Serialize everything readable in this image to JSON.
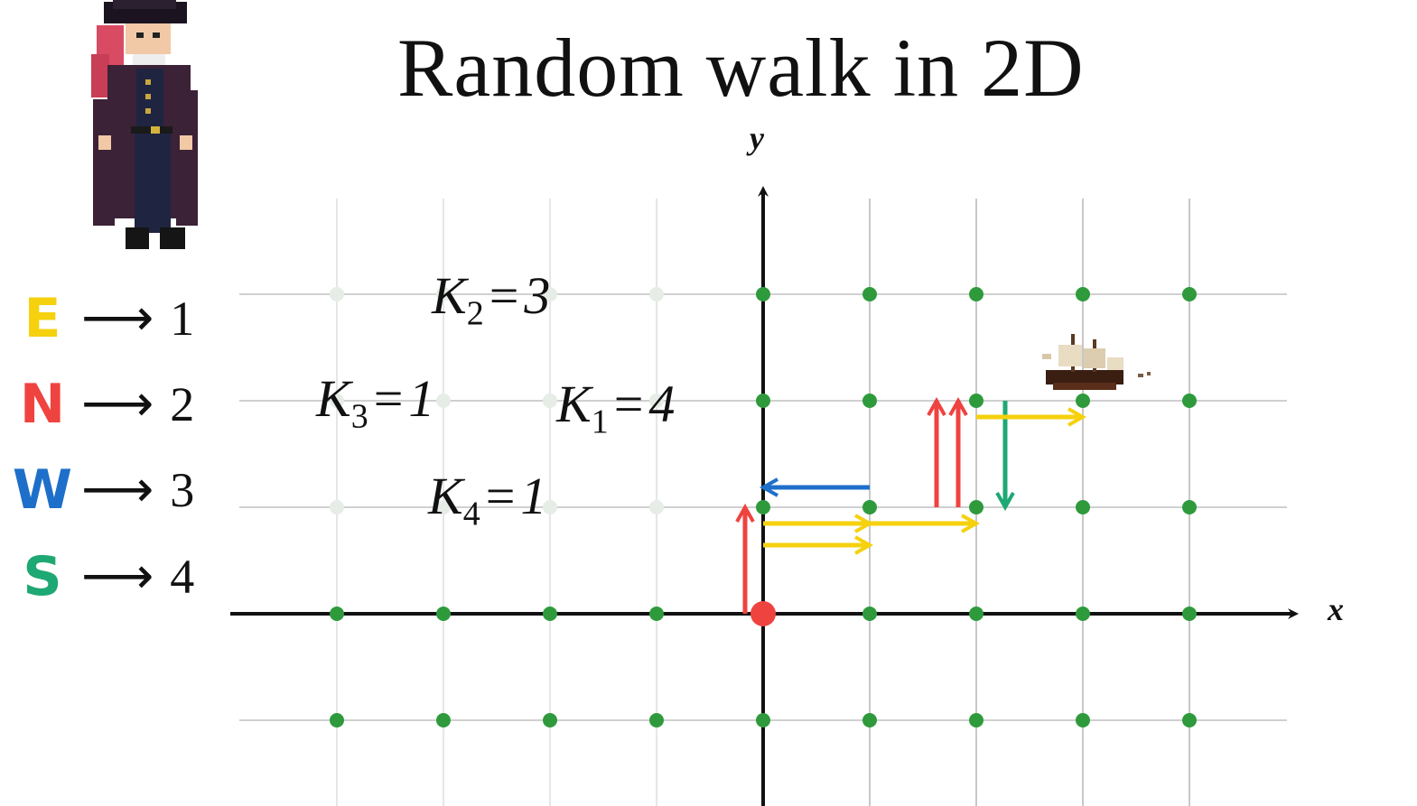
{
  "title": "Random walk in 2D",
  "axes": {
    "x_label": "x",
    "y_label": "y"
  },
  "legend": [
    {
      "letter": "E",
      "arrow": "⟶",
      "value": "1",
      "color": "#f5d10e"
    },
    {
      "letter": "N",
      "arrow": "⟶",
      "value": "2",
      "color": "#ef4340"
    },
    {
      "letter": "W",
      "arrow": "⟶",
      "value": "3",
      "color": "#1e6fc9"
    },
    {
      "letter": "S",
      "arrow": "⟶",
      "value": "4",
      "color": "#1ea873"
    }
  ],
  "counts": [
    {
      "symbol": "K",
      "index": "2",
      "op": "=",
      "value": "3"
    },
    {
      "symbol": "K",
      "index": "3",
      "op": "=",
      "value": "1"
    },
    {
      "symbol": "K",
      "index": "1",
      "op": "=",
      "value": "4"
    },
    {
      "symbol": "K",
      "index": "4",
      "op": "=",
      "value": "1"
    }
  ],
  "grid": {
    "x_range": [
      -4,
      4
    ],
    "y_range": [
      -1,
      3
    ]
  },
  "origin": [
    0,
    0
  ],
  "ship_position": [
    3,
    2
  ],
  "path_steps": [
    {
      "from": [
        0,
        0
      ],
      "to": [
        0,
        1
      ],
      "direction": "N"
    },
    {
      "from": [
        0,
        1
      ],
      "to": [
        1,
        1
      ],
      "direction": "E"
    },
    {
      "from": [
        1,
        1
      ],
      "to": [
        0,
        1
      ],
      "direction": "W"
    },
    {
      "from": [
        0,
        1
      ],
      "to": [
        1,
        1
      ],
      "direction": "E"
    },
    {
      "from": [
        1,
        1
      ],
      "to": [
        2,
        1
      ],
      "direction": "E"
    },
    {
      "from": [
        2,
        1
      ],
      "to": [
        2,
        2
      ],
      "direction": "N"
    },
    {
      "from": [
        2,
        2
      ],
      "to": [
        2,
        1
      ],
      "direction": "S"
    },
    {
      "from": [
        2,
        1
      ],
      "to": [
        2,
        2
      ],
      "direction": "N"
    },
    {
      "from": [
        2,
        2
      ],
      "to": [
        3,
        2
      ],
      "direction": "E"
    }
  ],
  "colors": {
    "grid": "#c8c8c8",
    "dot_active": "#2e9a3c",
    "dot_faded": "#e6ece6",
    "origin": "#ef4340",
    "axis": "#111111"
  }
}
